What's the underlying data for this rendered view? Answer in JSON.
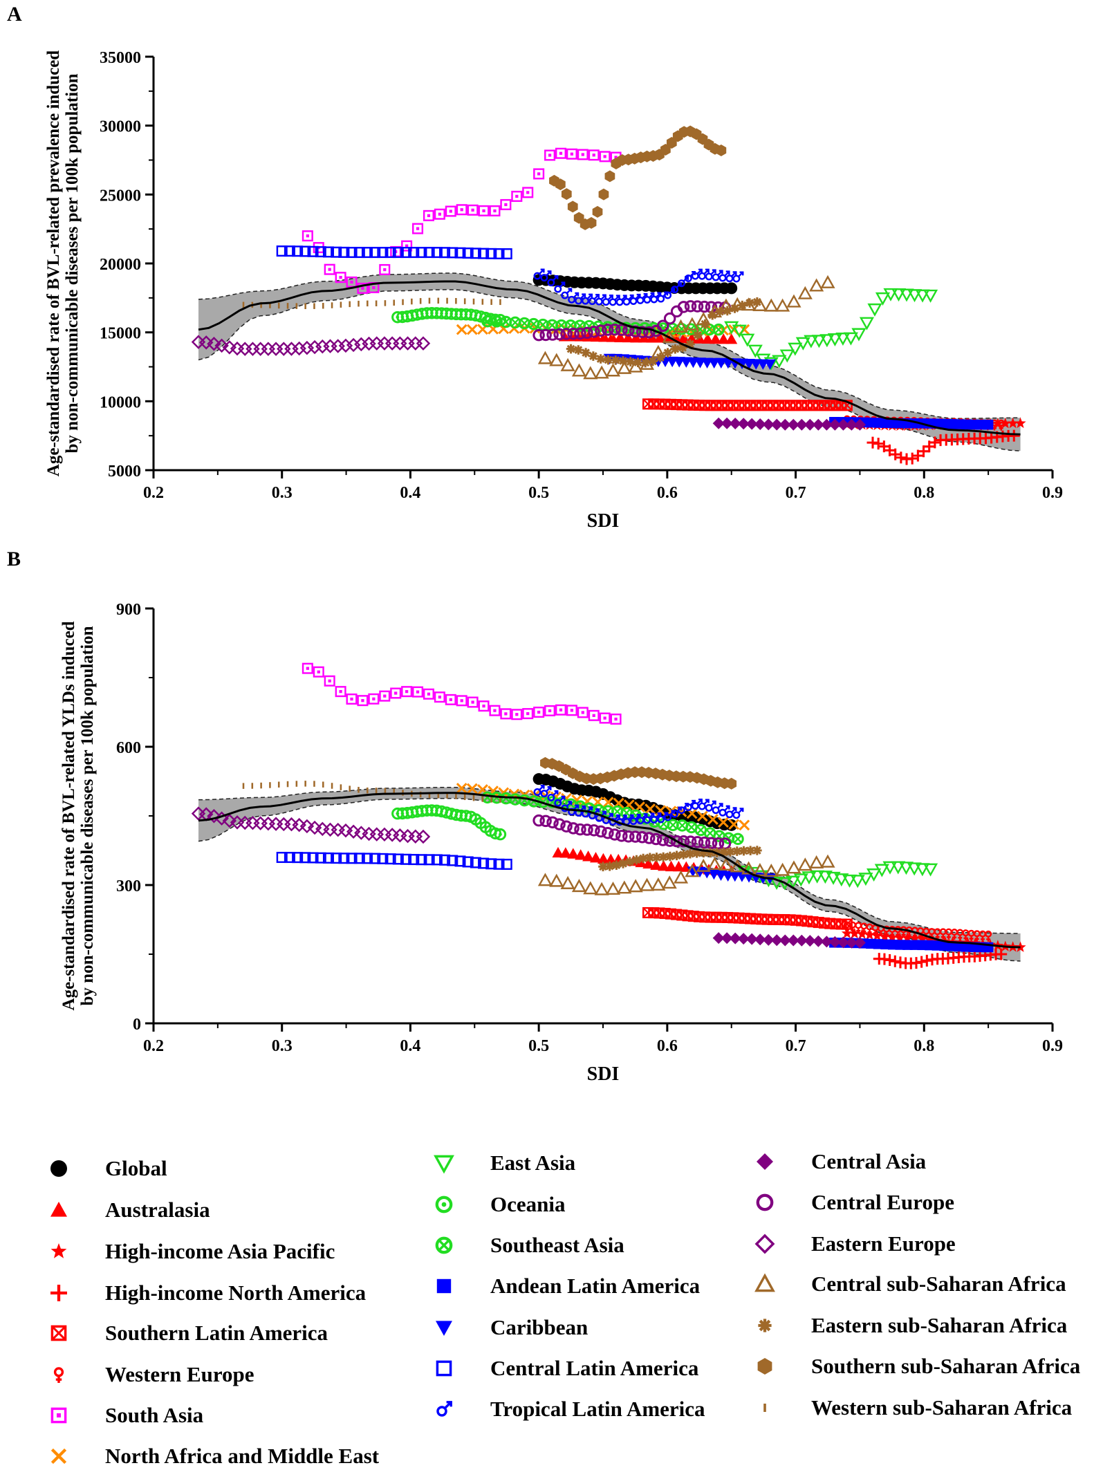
{
  "panels": [
    {
      "letter": "A"
    },
    {
      "letter": "B"
    }
  ],
  "chart_data": [
    {
      "type": "scatter",
      "panel": "A",
      "xlabel": "SDI",
      "ylabel_line1": "Age-standardised rate of  BVL-related prevalence induced",
      "ylabel_line2": "by non-communicable diseases per 100k population",
      "xlim": [
        0.2,
        0.9
      ],
      "ylim": [
        5000,
        35000
      ],
      "xticks": [
        0.2,
        0.3,
        0.4,
        0.5,
        0.6,
        0.7,
        0.8,
        0.9
      ],
      "xtick_labels": [
        "0.2",
        "0.3",
        "0.4",
        "0.5",
        "0.6",
        "0.7",
        "0.8",
        "0.9"
      ],
      "yticks": [
        5000,
        10000,
        15000,
        20000,
        25000,
        30000,
        35000
      ],
      "ytick_labels": [
        "5000",
        "10000",
        "15000",
        "20000",
        "25000",
        "30000",
        "35000"
      ],
      "fit": {
        "x": [
          0.235,
          0.3,
          0.35,
          0.4,
          0.45,
          0.5,
          0.55,
          0.6,
          0.65,
          0.7,
          0.75,
          0.8,
          0.85,
          0.875
        ],
        "y": [
          15200,
          17100,
          18000,
          18600,
          18700,
          18100,
          16900,
          15300,
          13700,
          12000,
          10200,
          8700,
          7900,
          7600
        ],
        "band": [
          2200,
          900,
          700,
          600,
          600,
          600,
          600,
          600,
          600,
          600,
          600,
          650,
          850,
          1200
        ]
      },
      "series": [
        {
          "name": "Global",
          "x0": 0.5,
          "x1": 0.65,
          "y": [
            18800,
            18600,
            18400,
            18200,
            18200
          ],
          "n": 28
        },
        {
          "name": "Australasia",
          "x0": 0.52,
          "x1": 0.65,
          "y": [
            14700,
            14600,
            14500
          ],
          "n": 22
        },
        {
          "name": "High-income Asia Pacific",
          "x0": 0.74,
          "x1": 0.875,
          "y": [
            8300,
            8200,
            8300,
            8400
          ],
          "n": 24
        },
        {
          "name": "High-income North America",
          "x0": 0.76,
          "x1": 0.87,
          "y": [
            7000,
            5800,
            7200,
            7300,
            7500
          ],
          "n": 26
        },
        {
          "name": "Southern Latin America",
          "x0": 0.585,
          "x1": 0.74,
          "y": [
            9800,
            9700,
            9700,
            9700
          ],
          "n": 36
        },
        {
          "name": "Western Europe",
          "x0": 0.74,
          "x1": 0.86,
          "y": [
            8600,
            8500,
            8400,
            8300
          ],
          "n": 24
        },
        {
          "name": "South Asia",
          "x0": 0.32,
          "x1": 0.56,
          "y": [
            22000,
            19000,
            18100,
            21000,
            23500,
            23900,
            23800,
            25000,
            28000,
            27900,
            27700
          ],
          "n": 29
        },
        {
          "name": "North Africa and Middle East",
          "x0": 0.44,
          "x1": 0.66,
          "y": [
            15200,
            15300,
            15100,
            15000,
            15200
          ],
          "n": 28
        },
        {
          "name": "East Asia",
          "x0": 0.65,
          "x1": 0.805,
          "y": [
            15400,
            12800,
            14400,
            14600,
            17800,
            17700
          ],
          "n": 26
        },
        {
          "name": "Oceania",
          "x0": 0.39,
          "x1": 0.47,
          "y": [
            16100,
            16400,
            16300,
            15900
          ],
          "n": 22
        },
        {
          "name": "Southeast Asia",
          "x0": 0.46,
          "x1": 0.64,
          "y": [
            15800,
            15500,
            15300,
            15200
          ],
          "n": 26
        },
        {
          "name": "Andean Latin America",
          "x0": 0.73,
          "x1": 0.85,
          "y": [
            8500,
            8400,
            8300
          ],
          "n": 22
        },
        {
          "name": "Caribbean",
          "x0": 0.555,
          "x1": 0.68,
          "y": [
            13100,
            12900,
            12800,
            12700
          ],
          "n": 24
        },
        {
          "name": "Central Latin America",
          "x0": 0.3,
          "x1": 0.475,
          "y": [
            20900,
            20800,
            20800,
            20700
          ],
          "n": 30
        },
        {
          "name": "Tropical Latin America",
          "x0": 0.5,
          "x1": 0.655,
          "y": [
            19200,
            17400,
            17300,
            17500,
            19200,
            19000
          ],
          "n": 30
        },
        {
          "name": "Central Asia",
          "x0": 0.64,
          "x1": 0.75,
          "y": [
            8400,
            8300,
            8300
          ],
          "n": 18
        },
        {
          "name": "Central Europe",
          "x0": 0.5,
          "x1": 0.645,
          "y": [
            14800,
            14900,
            15200,
            15000,
            16900,
            16800
          ],
          "n": 28
        },
        {
          "name": "Eastern Europe",
          "x0": 0.235,
          "x1": 0.41,
          "y": [
            14300,
            13800,
            13800,
            14000,
            14200,
            14200
          ],
          "n": 30
        },
        {
          "name": "Central sub-Saharan Africa",
          "x0": 0.505,
          "x1": 0.725,
          "y": [
            13100,
            12000,
            12500,
            15500,
            17000,
            16900,
            18600
          ],
          "n": 26
        },
        {
          "name": "Eastern sub-Saharan Africa",
          "x0": 0.525,
          "x1": 0.67,
          "y": [
            13800,
            13000,
            12800,
            13900,
            16500,
            17200
          ],
          "n": 26
        },
        {
          "name": "Southern sub-Saharan Africa",
          "x0": 0.512,
          "x1": 0.642,
          "y": [
            26000,
            22800,
            27500,
            27800,
            29600,
            28200
          ],
          "n": 28
        },
        {
          "name": "Western sub-Saharan Africa",
          "x0": 0.27,
          "x1": 0.47,
          "y": [
            17000,
            16900,
            17100,
            17300,
            17200
          ],
          "n": 30
        }
      ]
    },
    {
      "type": "scatter",
      "panel": "B",
      "xlabel": "SDI",
      "ylabel_line1": "Age-standardised rate of  BVL-related YLDs induced",
      "ylabel_line2": "by non-communicable diseases per 100k population",
      "xlim": [
        0.2,
        0.9
      ],
      "ylim": [
        0,
        900
      ],
      "xticks": [
        0.2,
        0.3,
        0.4,
        0.5,
        0.6,
        0.7,
        0.8,
        0.9
      ],
      "xtick_labels": [
        "0.2",
        "0.3",
        "0.4",
        "0.5",
        "0.6",
        "0.7",
        "0.8",
        "0.9"
      ],
      "yticks": [
        0,
        300,
        600,
        900
      ],
      "ytick_labels": [
        "0",
        "300",
        "600",
        "900"
      ],
      "fit": {
        "x": [
          0.235,
          0.3,
          0.35,
          0.4,
          0.45,
          0.5,
          0.55,
          0.6,
          0.65,
          0.7,
          0.75,
          0.8,
          0.85,
          0.875
        ],
        "y": [
          440,
          470,
          488,
          498,
          500,
          490,
          462,
          425,
          375,
          315,
          255,
          205,
          175,
          165
        ],
        "band": [
          45,
          20,
          14,
          12,
          12,
          12,
          12,
          12,
          12,
          12,
          13,
          15,
          22,
          30
        ]
      },
      "series": [
        {
          "name": "Global",
          "x0": 0.5,
          "x1": 0.65,
          "y": [
            530,
            505,
            475,
            450,
            430
          ],
          "n": 28
        },
        {
          "name": "Australasia",
          "x0": 0.515,
          "x1": 0.65,
          "y": [
            370,
            355,
            340,
            330
          ],
          "n": 24
        },
        {
          "name": "High-income Asia Pacific",
          "x0": 0.74,
          "x1": 0.875,
          "y": [
            195,
            185,
            175,
            165
          ],
          "n": 24
        },
        {
          "name": "High-income North America",
          "x0": 0.765,
          "x1": 0.86,
          "y": [
            140,
            130,
            140,
            145,
            150
          ],
          "n": 24
        },
        {
          "name": "Southern Latin America",
          "x0": 0.585,
          "x1": 0.74,
          "y": [
            240,
            230,
            225,
            215
          ],
          "n": 36
        },
        {
          "name": "Western Europe",
          "x0": 0.74,
          "x1": 0.85,
          "y": [
            210,
            200,
            195,
            190
          ],
          "n": 26
        },
        {
          "name": "South Asia",
          "x0": 0.32,
          "x1": 0.56,
          "y": [
            770,
            700,
            720,
            700,
            670,
            680,
            660
          ],
          "n": 29
        },
        {
          "name": "North Africa and Middle East",
          "x0": 0.44,
          "x1": 0.66,
          "y": [
            510,
            495,
            480,
            460,
            430
          ],
          "n": 28
        },
        {
          "name": "East Asia",
          "x0": 0.66,
          "x1": 0.805,
          "y": [
            330,
            305,
            320,
            310,
            340,
            335
          ],
          "n": 24
        },
        {
          "name": "Oceania",
          "x0": 0.39,
          "x1": 0.47,
          "y": [
            455,
            462,
            450,
            410
          ],
          "n": 22
        },
        {
          "name": "Southeast Asia",
          "x0": 0.46,
          "x1": 0.655,
          "y": [
            490,
            480,
            460,
            430,
            400
          ],
          "n": 28
        },
        {
          "name": "Andean Latin America",
          "x0": 0.73,
          "x1": 0.85,
          "y": [
            175,
            170,
            165
          ],
          "n": 22
        },
        {
          "name": "Caribbean",
          "x0": 0.62,
          "x1": 0.68,
          "y": [
            330,
            320,
            315
          ],
          "n": 12
        },
        {
          "name": "Central Latin America",
          "x0": 0.3,
          "x1": 0.475,
          "y": [
            360,
            358,
            355,
            345
          ],
          "n": 30
        },
        {
          "name": "Tropical Latin America",
          "x0": 0.5,
          "x1": 0.655,
          "y": [
            505,
            460,
            440,
            445,
            475,
            455
          ],
          "n": 30
        },
        {
          "name": "Central Asia",
          "x0": 0.64,
          "x1": 0.75,
          "y": [
            185,
            180,
            175
          ],
          "n": 18
        },
        {
          "name": "Central Europe",
          "x0": 0.5,
          "x1": 0.645,
          "y": [
            440,
            420,
            405,
            395,
            390
          ],
          "n": 28
        },
        {
          "name": "Eastern Europe",
          "x0": 0.235,
          "x1": 0.41,
          "y": [
            455,
            435,
            432,
            420,
            410,
            405
          ],
          "n": 30
        },
        {
          "name": "Central sub-Saharan Africa",
          "x0": 0.505,
          "x1": 0.725,
          "y": [
            310,
            290,
            300,
            345,
            330,
            350
          ],
          "n": 26
        },
        {
          "name": "Eastern sub-Saharan Africa",
          "x0": 0.55,
          "x1": 0.67,
          "y": [
            340,
            360,
            370,
            375
          ],
          "n": 24
        },
        {
          "name": "Southern sub-Saharan Africa",
          "x0": 0.505,
          "x1": 0.65,
          "y": [
            565,
            530,
            545,
            535,
            520
          ],
          "n": 28
        },
        {
          "name": "Western sub-Saharan Africa",
          "x0": 0.27,
          "x1": 0.47,
          "y": [
            515,
            520,
            505,
            495,
            485
          ],
          "n": 30
        }
      ]
    }
  ],
  "legend": [
    {
      "name": "Global",
      "marker": "circle",
      "color": "#000000",
      "fill": true
    },
    {
      "name": "Australasia",
      "marker": "triangle-up",
      "color": "#ff0000",
      "fill": true
    },
    {
      "name": "High-income Asia Pacific",
      "marker": "star",
      "color": "#ff0000",
      "fill": true
    },
    {
      "name": "High-income North America",
      "marker": "plus",
      "color": "#ff0000",
      "fill": false
    },
    {
      "name": "Southern Latin America",
      "marker": "square-x",
      "color": "#ff0000",
      "fill": false
    },
    {
      "name": "Western Europe",
      "marker": "female",
      "color": "#ff0000",
      "fill": false
    },
    {
      "name": "South Asia",
      "marker": "square-dot",
      "color": "#ff00ff",
      "fill": false
    },
    {
      "name": "North Africa and Middle East",
      "marker": "x",
      "color": "#ff8c00",
      "fill": false
    },
    {
      "name": "East Asia",
      "marker": "triangle-down-open",
      "color": "#22dd22",
      "fill": false
    },
    {
      "name": "Oceania",
      "marker": "circle-dot",
      "color": "#22dd22",
      "fill": false
    },
    {
      "name": "Southeast Asia",
      "marker": "circle-x",
      "color": "#22dd22",
      "fill": false
    },
    {
      "name": "Andean Latin America",
      "marker": "square",
      "color": "#0000ff",
      "fill": true
    },
    {
      "name": "Caribbean",
      "marker": "triangle-down",
      "color": "#0000ff",
      "fill": true
    },
    {
      "name": "Central Latin America",
      "marker": "square-open",
      "color": "#0000ff",
      "fill": false
    },
    {
      "name": "Tropical Latin America",
      "marker": "male",
      "color": "#0000ff",
      "fill": false
    },
    {
      "name": "Central Asia",
      "marker": "diamond",
      "color": "#800080",
      "fill": true
    },
    {
      "name": "Central Europe",
      "marker": "circle-open",
      "color": "#800080",
      "fill": false
    },
    {
      "name": "Eastern Europe",
      "marker": "diamond-open",
      "color": "#800080",
      "fill": false
    },
    {
      "name": "Central sub-Saharan Africa",
      "marker": "triangle-up-open",
      "color": "#a0692a",
      "fill": false
    },
    {
      "name": "Eastern sub-Saharan Africa",
      "marker": "asterisk",
      "color": "#a0692a",
      "fill": false
    },
    {
      "name": "Southern sub-Saharan Africa",
      "marker": "hexagon",
      "color": "#a0692a",
      "fill": true
    },
    {
      "name": "Western sub-Saharan Africa",
      "marker": "dash",
      "color": "#a0692a",
      "fill": false
    }
  ]
}
